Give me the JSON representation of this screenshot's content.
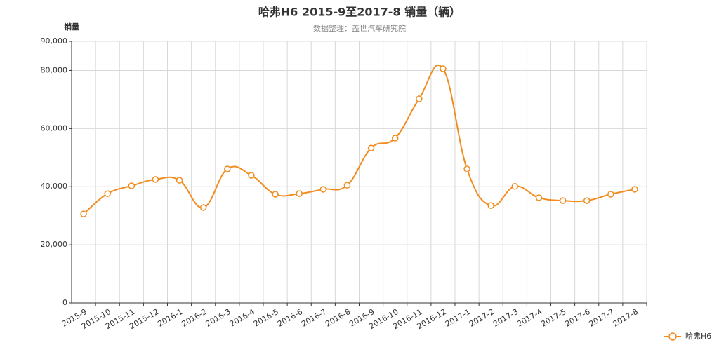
{
  "chart_data": {
    "type": "line",
    "title": "哈弗H6 2015-9至2017-8 销量（辆）",
    "subtitle": "数据整理：盖世汽车研究院",
    "y_label": "销量",
    "categories": [
      "2015-9",
      "2015-10",
      "2015-11",
      "2015-12",
      "2016-1",
      "2016-2",
      "2016-3",
      "2016-4",
      "2016-5",
      "2016-6",
      "2016-7",
      "2016-8",
      "2016-9",
      "2016-10",
      "2016-11",
      "2016-12",
      "2017-1",
      "2017-2",
      "2017-3",
      "2017-4",
      "2017-5",
      "2017-6",
      "2017-7",
      "2017-8"
    ],
    "series": [
      {
        "name": "哈弗H6",
        "color": "#f28c1e",
        "values": [
          30600,
          37600,
          40300,
          42500,
          42200,
          32800,
          46100,
          43900,
          37400,
          37600,
          39100,
          40500,
          53300,
          56700,
          70200,
          80600,
          46100,
          33500,
          40100,
          36200,
          35200,
          35200,
          37400,
          39100
        ]
      }
    ],
    "ylim": [
      0,
      90000
    ],
    "yticks": [
      0,
      {
        "value": 20000,
        "label": "20,000"
      },
      {
        "value": 40000,
        "label": "40,000"
      },
      {
        "value": 60000,
        "label": "60,000"
      },
      {
        "value": 80000,
        "label": "80,000"
      },
      {
        "value": 90000,
        "label": "90,000"
      }
    ],
    "grid": true,
    "legend": "bottom-right"
  }
}
